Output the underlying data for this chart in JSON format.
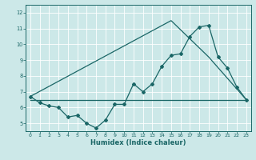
{
  "xlabel": "Humidex (Indice chaleur)",
  "bg_color": "#cce8e8",
  "grid_color": "#b0d4d4",
  "line_color": "#1a6666",
  "xlim": [
    -0.5,
    23.5
  ],
  "ylim": [
    4.5,
    12.5
  ],
  "yticks": [
    5,
    6,
    7,
    8,
    9,
    10,
    11,
    12
  ],
  "xticks": [
    0,
    1,
    2,
    3,
    4,
    5,
    6,
    7,
    8,
    9,
    10,
    11,
    12,
    13,
    14,
    15,
    16,
    17,
    18,
    19,
    20,
    21,
    22,
    23
  ],
  "line1_x": [
    0,
    1,
    2,
    3,
    4,
    5,
    6,
    7,
    8,
    9,
    10,
    11,
    12,
    13,
    14,
    15,
    16,
    17,
    18,
    19,
    20,
    21,
    22,
    23
  ],
  "line1_y": [
    6.7,
    6.3,
    6.1,
    6.0,
    5.4,
    5.5,
    5.0,
    4.7,
    5.2,
    6.2,
    6.2,
    7.5,
    7.0,
    7.5,
    8.6,
    9.3,
    9.4,
    10.5,
    11.1,
    11.2,
    9.2,
    8.5,
    7.3,
    6.5
  ],
  "line2_x": [
    0,
    15,
    19,
    23
  ],
  "line2_y": [
    6.7,
    11.5,
    9.2,
    6.5
  ],
  "line3_x": [
    0,
    23
  ],
  "line3_y": [
    6.5,
    6.5
  ]
}
